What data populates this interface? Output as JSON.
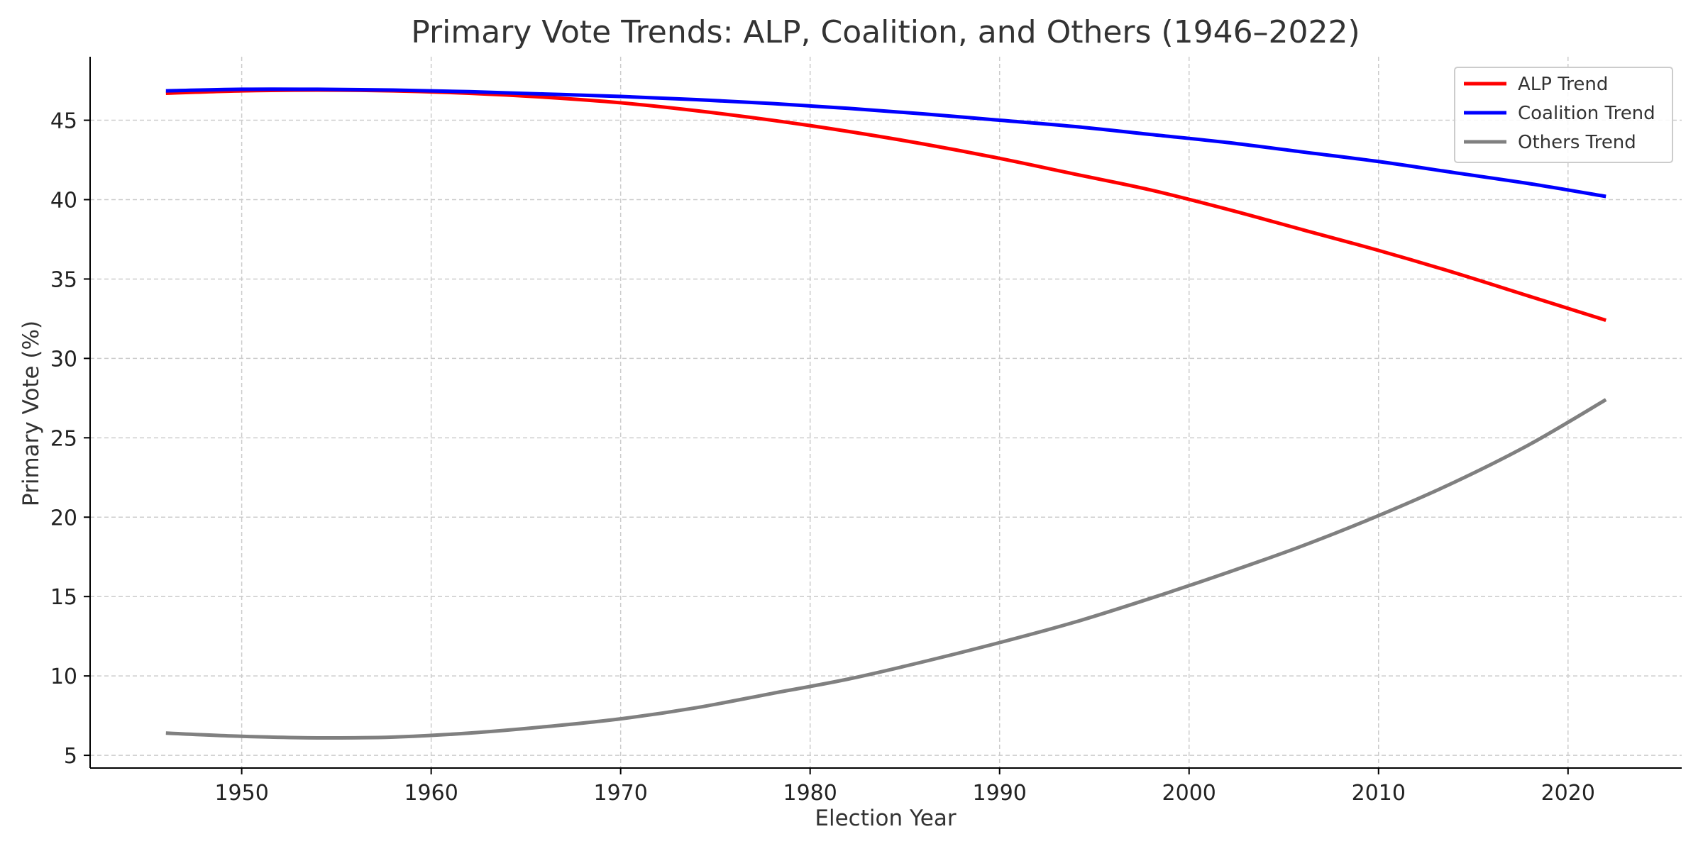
{
  "chart_data": {
    "type": "line",
    "title": "Primary Vote Trends: ALP, Coalition, and Others (1946–2022)",
    "xlabel": "Election Year",
    "ylabel": "Primary Vote (%)",
    "xlim": [
      1942,
      2026
    ],
    "ylim": [
      4.2,
      49
    ],
    "xticks": [
      1950,
      1960,
      1970,
      1980,
      1990,
      2000,
      2010,
      2020
    ],
    "yticks": [
      5,
      10,
      15,
      20,
      25,
      30,
      35,
      40,
      45
    ],
    "grid": true,
    "legend_position": "top-right",
    "x": [
      1946,
      1950,
      1954,
      1958,
      1962,
      1966,
      1970,
      1974,
      1978,
      1982,
      1986,
      1990,
      1994,
      1998,
      2002,
      2006,
      2010,
      2014,
      2018,
      2022
    ],
    "series": [
      {
        "name": "ALP Trend",
        "color": "#ff0000",
        "values": [
          46.7,
          46.85,
          46.9,
          46.85,
          46.7,
          46.45,
          46.1,
          45.6,
          45.0,
          44.3,
          43.5,
          42.6,
          41.6,
          40.6,
          39.4,
          38.1,
          36.8,
          35.4,
          33.9,
          32.4
        ]
      },
      {
        "name": "Coalition Trend",
        "color": "#0000ff",
        "values": [
          46.85,
          46.95,
          46.95,
          46.9,
          46.8,
          46.65,
          46.5,
          46.3,
          46.05,
          45.75,
          45.4,
          45.0,
          44.6,
          44.1,
          43.6,
          43.0,
          42.4,
          41.7,
          41.0,
          40.2
        ]
      },
      {
        "name": "Others Trend",
        "color": "#808080",
        "values": [
          6.4,
          6.2,
          6.1,
          6.15,
          6.4,
          6.8,
          7.3,
          8.0,
          8.9,
          9.8,
          10.9,
          12.1,
          13.4,
          14.9,
          16.5,
          18.2,
          20.1,
          22.2,
          24.6,
          27.4
        ]
      }
    ]
  }
}
